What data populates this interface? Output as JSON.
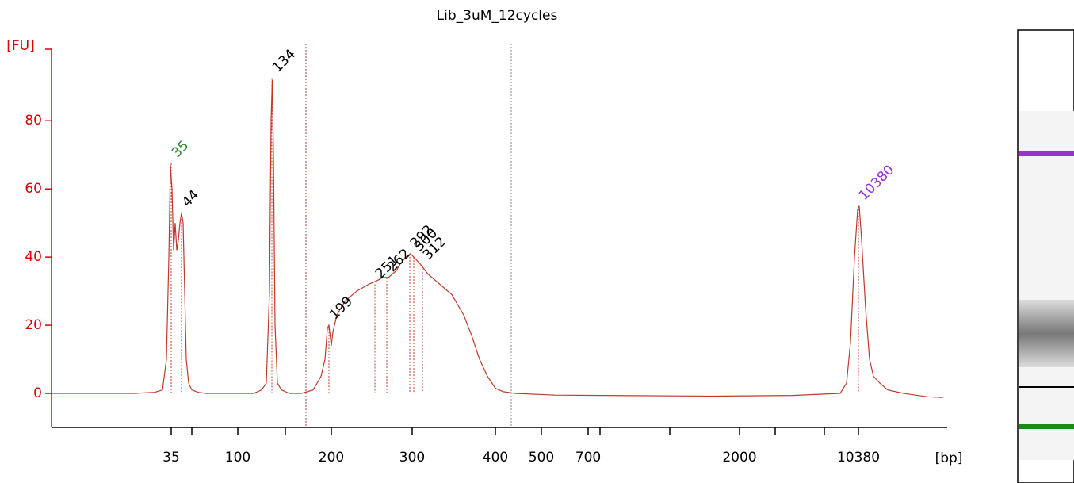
{
  "chart_data": {
    "type": "line",
    "title": "Lib_3uM_12cycles",
    "ylabel": "[FU]",
    "xlabel": "[bp]",
    "color": "#c0392b",
    "axis_color": "#e00000",
    "xlim": [
      0,
      1130
    ],
    "ylim": [
      -10,
      101
    ],
    "yticks": [
      0,
      20,
      40,
      60,
      80
    ],
    "xticks": [
      {
        "value": 151,
        "label": "35"
      },
      {
        "value": 235,
        "label": "100"
      },
      {
        "value": 353,
        "label": "200"
      },
      {
        "value": 455,
        "label": "300"
      },
      {
        "value": 560,
        "label": "400"
      },
      {
        "value": 618,
        "label": "500"
      },
      {
        "value": 677,
        "label": "700"
      },
      {
        "value": 868,
        "label": "2000"
      },
      {
        "value": 1018,
        "label": "10380"
      }
    ],
    "xminor": [
      177,
      295,
      692,
      780,
      913,
      975
    ],
    "grid": false,
    "x": [
      0,
      105,
      130,
      140,
      145,
      148,
      150,
      152,
      154,
      156,
      158,
      160,
      162,
      164,
      166,
      168,
      170,
      173,
      177,
      185,
      195,
      255,
      265,
      271,
      275,
      277,
      278.5,
      280,
      282,
      285,
      290,
      300,
      315,
      330,
      340,
      345,
      348,
      350,
      353,
      355,
      360,
      370,
      385,
      400,
      410,
      418,
      425,
      435,
      440,
      447,
      453,
      457,
      465,
      475,
      490,
      505,
      520,
      530,
      540,
      550,
      560,
      570,
      585,
      635,
      835,
      935,
      995,
      1003,
      1008,
      1013,
      1017,
      1019,
      1022,
      1027,
      1032,
      1037,
      1045,
      1055,
      1075,
      1105,
      1125
    ],
    "values": [
      0,
      0,
      0.3,
      1,
      10,
      40,
      67,
      60,
      42,
      50,
      42,
      45,
      50,
      53,
      50,
      30,
      10,
      3,
      1,
      0.3,
      0,
      0,
      1,
      3,
      30,
      80,
      92,
      70,
      20,
      3,
      1,
      0,
      0,
      1,
      5,
      10,
      19,
      20,
      14,
      18,
      23,
      27,
      30,
      32,
      33,
      34,
      34,
      36,
      38,
      40,
      41,
      40,
      38,
      35,
      32,
      29,
      23,
      17,
      10,
      5,
      1.5,
      0.5,
      0,
      -0.5,
      -0.8,
      -0.6,
      0,
      3,
      15,
      40,
      54,
      55,
      45,
      25,
      10,
      5,
      3,
      1,
      0,
      -1,
      -1.2
    ],
    "peaks": [
      {
        "size": 35,
        "x": 151,
        "y": 67.5,
        "color": "#2a8a2a"
      },
      {
        "size": 44,
        "x": 164,
        "y": 53,
        "color": "#000000"
      },
      {
        "size": 134,
        "x": 278,
        "y": 92.5,
        "color": "#000000"
      },
      {
        "size": 199,
        "x": 350,
        "y": 20,
        "color": "#000000"
      },
      {
        "size": 251,
        "x": 408,
        "y": 32,
        "color": "#000000"
      },
      {
        "size": 262,
        "x": 423,
        "y": 34,
        "color": "#000000"
      },
      {
        "size": 292,
        "x": 452,
        "y": 41,
        "color": "#000000"
      },
      {
        "size": 300,
        "x": 457,
        "y": 40,
        "color": "#000000"
      },
      {
        "size": 312,
        "x": 468,
        "y": 37.5,
        "color": "#000000"
      },
      {
        "size": 10380,
        "x": 1018,
        "y": 55,
        "color": "#9b30d0"
      }
    ],
    "region": [
      321,
      580
    ]
  }
}
